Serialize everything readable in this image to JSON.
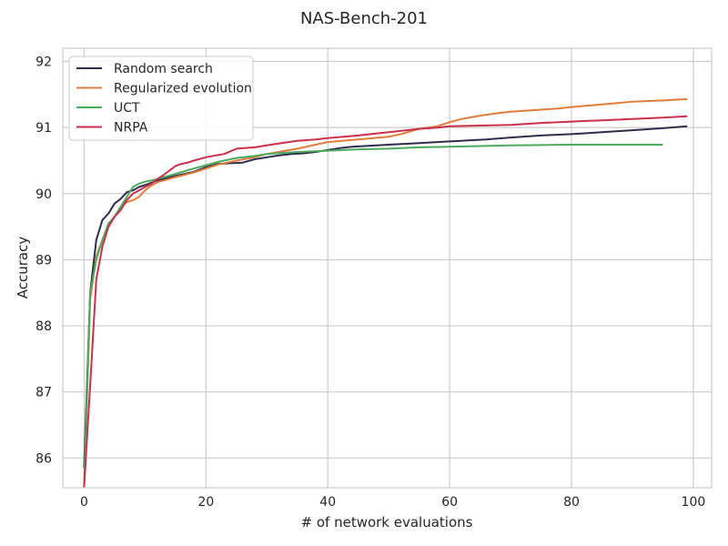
{
  "chart_data": {
    "type": "line",
    "title": "NAS-Bench-201",
    "xlabel": "# of network evaluations",
    "ylabel": "Accuracy",
    "xlim": [
      -3.5,
      103
    ],
    "ylim": [
      85.55,
      92.2
    ],
    "xticks": [
      0,
      20,
      40,
      60,
      80,
      100
    ],
    "yticks": [
      86,
      87,
      88,
      89,
      90,
      91,
      92
    ],
    "grid": true,
    "legend_position": "upper-left",
    "series": [
      {
        "name": "Random search",
        "color": "#2e2d4d",
        "x": [
          0,
          1,
          2,
          3,
          4,
          5,
          6,
          7,
          8,
          9,
          10,
          12,
          15,
          18,
          20,
          22,
          24,
          26,
          28,
          30,
          32,
          34,
          36,
          38,
          40,
          42,
          44,
          46,
          48,
          50,
          54,
          58,
          60,
          62,
          66,
          70,
          75,
          80,
          85,
          90,
          95,
          99
        ],
        "y": [
          85.85,
          88.5,
          89.3,
          89.6,
          89.7,
          89.85,
          89.92,
          90.02,
          90.05,
          90.1,
          90.13,
          90.2,
          90.27,
          90.33,
          90.4,
          90.45,
          90.46,
          90.47,
          90.52,
          90.55,
          90.58,
          90.6,
          90.61,
          90.63,
          90.66,
          90.69,
          90.71,
          90.72,
          90.73,
          90.74,
          90.76,
          90.78,
          90.79,
          90.8,
          90.82,
          90.85,
          90.88,
          90.9,
          90.93,
          90.96,
          90.99,
          91.02
        ]
      },
      {
        "name": "Regularized evolution",
        "color": "#e07c3c",
        "x": [
          0,
          1,
          2,
          3,
          4,
          5,
          6,
          7,
          8,
          9,
          10,
          11,
          12,
          15,
          18,
          20,
          22,
          25,
          28,
          30,
          35,
          40,
          45,
          50,
          52,
          55,
          58,
          60,
          62,
          65,
          68,
          70,
          75,
          78,
          80,
          85,
          90,
          95,
          99
        ],
        "y": [
          85.55,
          88.4,
          89.05,
          89.3,
          89.5,
          89.65,
          89.8,
          89.87,
          89.9,
          89.95,
          90.05,
          90.12,
          90.17,
          90.25,
          90.32,
          90.38,
          90.44,
          90.5,
          90.55,
          90.6,
          90.68,
          90.78,
          90.82,
          90.86,
          90.9,
          90.98,
          91.02,
          91.08,
          91.13,
          91.18,
          91.22,
          91.24,
          91.27,
          91.29,
          91.31,
          91.35,
          91.39,
          91.41,
          91.43
        ]
      },
      {
        "name": "UCT",
        "color": "#4caa5c",
        "x": [
          0,
          1,
          2,
          3,
          4,
          5,
          6,
          7,
          8,
          9,
          10,
          11,
          12,
          15,
          18,
          20,
          22,
          25,
          28,
          30,
          35,
          40,
          45,
          50,
          55,
          60,
          65,
          70,
          80,
          90,
          95
        ],
        "y": [
          85.55,
          88.5,
          89.0,
          89.3,
          89.55,
          89.65,
          89.8,
          89.95,
          90.1,
          90.15,
          90.18,
          90.2,
          90.22,
          90.3,
          90.38,
          90.43,
          90.48,
          90.54,
          90.57,
          90.6,
          90.63,
          90.65,
          90.67,
          90.68,
          90.7,
          90.71,
          90.72,
          90.73,
          90.74,
          90.74,
          90.74
        ]
      },
      {
        "name": "NRPA",
        "color": "#c9304b",
        "x": [
          0,
          1,
          2,
          3,
          4,
          5,
          6,
          7,
          8,
          9,
          10,
          11,
          12,
          13,
          14,
          15,
          16,
          17,
          18,
          20,
          23,
          25,
          28,
          30,
          32,
          35,
          38,
          40,
          45,
          50,
          55,
          58,
          60,
          65,
          70,
          75,
          80,
          85,
          90,
          95,
          99
        ],
        "y": [
          85.55,
          87.1,
          88.7,
          89.2,
          89.5,
          89.65,
          89.75,
          89.9,
          90.0,
          90.05,
          90.1,
          90.15,
          90.22,
          90.28,
          90.35,
          90.42,
          90.45,
          90.47,
          90.5,
          90.55,
          90.6,
          90.68,
          90.7,
          90.73,
          90.76,
          90.8,
          90.82,
          90.84,
          90.88,
          90.93,
          90.98,
          91.0,
          91.02,
          91.03,
          91.04,
          91.07,
          91.09,
          91.11,
          91.13,
          91.15,
          91.17
        ]
      }
    ]
  }
}
